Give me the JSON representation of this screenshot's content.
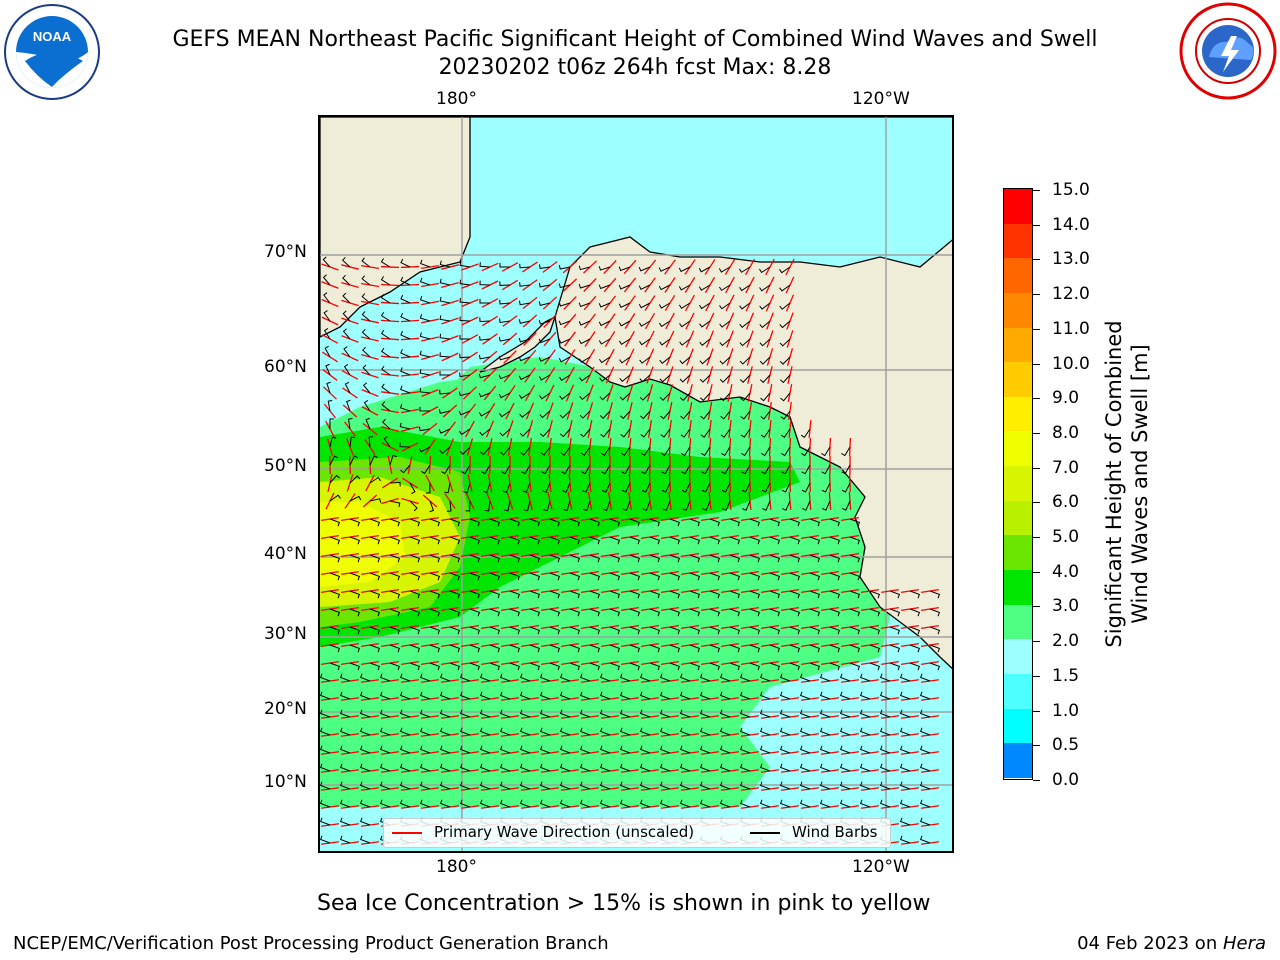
{
  "title": {
    "line1": "GEFS MEAN Northeast Pacific Significant Height of Combined Wind Waves and Swell",
    "line2": "20230202 t06z 264h fcst   Max: 8.28"
  },
  "logos": {
    "left": {
      "text": "NOAA",
      "icon": "noaa-logo-icon"
    },
    "right": {
      "icon": "nws-logo-icon"
    }
  },
  "map": {
    "top_ticks": [
      "180°",
      "120°W"
    ],
    "bottom_ticks": [
      "180°",
      "120°W"
    ],
    "lat_ticks": [
      "70°N",
      "60°N",
      "50°N",
      "40°N",
      "30°N",
      "20°N",
      "10°N"
    ],
    "legend": {
      "wave_label": "Primary Wave Direction (unscaled)",
      "wave_color": "#ff0000",
      "barb_label": "Wind Barbs",
      "barb_color": "#000000"
    },
    "land_color": "#efedd8",
    "regions": [
      {
        "name": "Alaska / North America land",
        "color": "#efedd8"
      },
      {
        "name": "open ocean 2-3 m",
        "color": "#9effff"
      },
      {
        "name": "central Pacific 3-4 m",
        "color": "#4dff82"
      },
      {
        "name": "storm belt 4-5 m",
        "color": "#00e600"
      },
      {
        "name": "western max 6-8 m",
        "color": "#d7f500"
      }
    ]
  },
  "colorbar": {
    "label_line1": "Significant Height of Combined",
    "label_line2": "Wind Waves and Swell [m]",
    "ticks": [
      "15.0",
      "14.0",
      "13.0",
      "12.0",
      "11.0",
      "10.0",
      "9.0",
      "8.0",
      "7.0",
      "6.0",
      "5.0",
      "4.0",
      "3.0",
      "2.0",
      "1.5",
      "1.0",
      "0.5",
      "0.0"
    ],
    "colors": [
      "#ff0000",
      "#ff3300",
      "#ff6600",
      "#ff8800",
      "#ffaa00",
      "#ffcc00",
      "#ffee00",
      "#f0ff00",
      "#d7f500",
      "#b8f000",
      "#6ae600",
      "#00e600",
      "#4dff82",
      "#9effff",
      "#4dffff",
      "#00ffff",
      "#0088ff",
      "#0000ff"
    ]
  },
  "note": "Sea Ice Concentration > 15% is shown in pink to yellow",
  "footer": {
    "left": "NCEP/EMC/Verification Post Processing Product Generation Branch",
    "right_date": "04 Feb 2023 on ",
    "right_host": "Hera"
  }
}
